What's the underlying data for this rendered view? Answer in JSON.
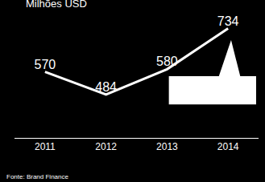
{
  "chart_data": {
    "type": "line",
    "title": "Milhões USD",
    "source": "Fonte: Brand Finance",
    "categories": [
      "2011",
      "2012",
      "2013",
      "2014"
    ],
    "values": [
      570,
      484,
      580,
      734
    ],
    "color": "#ffffff",
    "ylim": [
      320,
      760
    ],
    "grid": false,
    "data_labels": true,
    "tick_labels": "x"
  }
}
